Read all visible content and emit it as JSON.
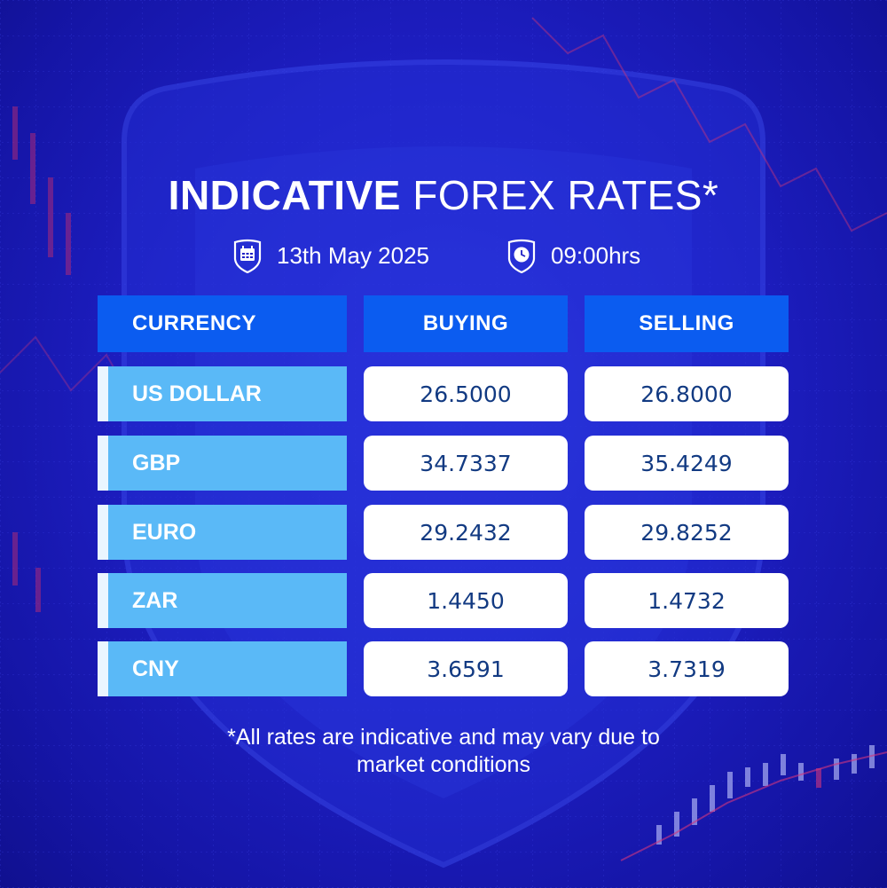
{
  "title": {
    "bold": "INDICATIVE",
    "light": "FOREX RATES*"
  },
  "meta": {
    "date": "13th May 2025",
    "time": "09:00hrs",
    "date_icon": "calendar-icon",
    "time_icon": "clock-icon"
  },
  "table": {
    "headers": [
      "CURRENCY",
      "BUYING",
      "SELLING"
    ],
    "rows": [
      {
        "currency": "US DOLLAR",
        "buying": "26.5000",
        "selling": "26.8000"
      },
      {
        "currency": "GBP",
        "buying": "34.7337",
        "selling": "35.4249"
      },
      {
        "currency": "EURO",
        "buying": "29.2432",
        "selling": "29.8252"
      },
      {
        "currency": "ZAR",
        "buying": "1.4450",
        "selling": "1.4732"
      },
      {
        "currency": "CNY",
        "buying": "3.6591",
        "selling": "3.7319"
      }
    ]
  },
  "footnote": {
    "line1": "*All rates are indicative and may vary due to",
    "line2": "market conditions"
  },
  "colors": {
    "background": "#1e1fc4",
    "header": "#0b5cf0",
    "currency_cell": "#5ab9f7",
    "value_text": "#123a82"
  }
}
